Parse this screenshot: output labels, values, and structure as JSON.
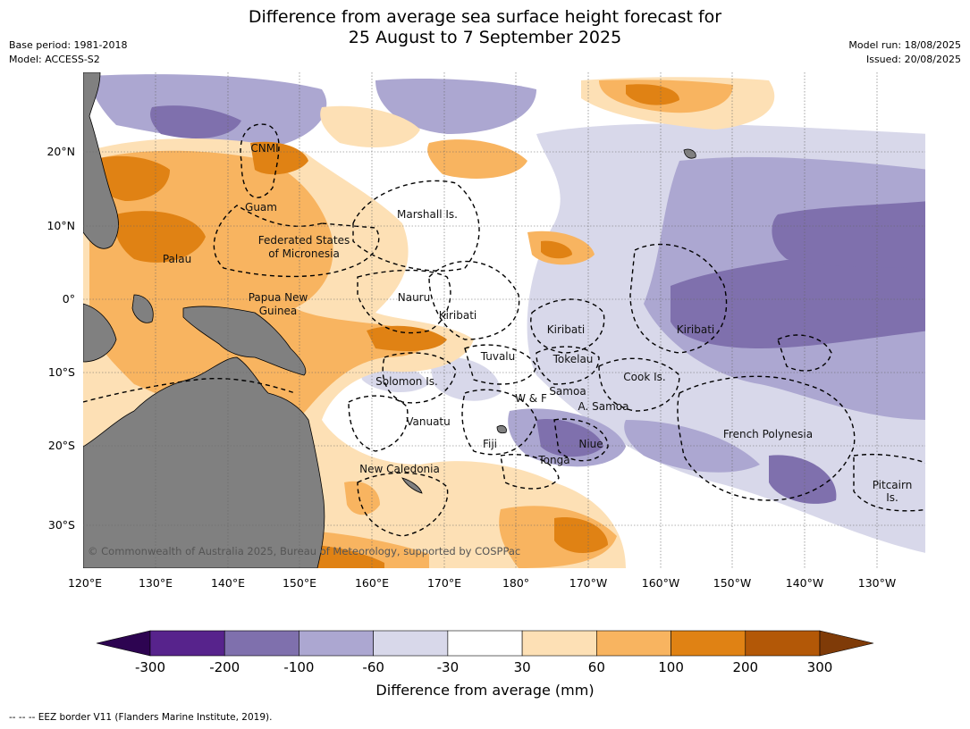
{
  "title": {
    "line1": "Difference from average sea surface height forecast for",
    "line2": "25 August to 7 September 2025"
  },
  "meta": {
    "base_period": "Base period: 1981-2018",
    "model": "Model: ACCESS-S2",
    "model_run": "Model run: 18/08/2025",
    "issued": "Issued: 20/08/2025"
  },
  "copyright": "© Commonwealth of Australia 2025, Bureau of Meteorology, supported by COSPPac",
  "axes": {
    "lon_ticks": [
      "120°E",
      "130°E",
      "140°E",
      "150°E",
      "160°E",
      "170°E",
      "180°",
      "170°W",
      "160°W",
      "150°W",
      "140°W",
      "130°W"
    ],
    "lat_ticks": [
      "20°N",
      "10°N",
      "0°",
      "10°S",
      "20°S",
      "30°S"
    ]
  },
  "regions": [
    "CNMI",
    "Guam",
    "Marshall Is.",
    "Federated States",
    "of Micronesia",
    "Palau",
    "Papua New",
    "Guinea",
    "Nauru",
    "Kiribati",
    "Kiribati",
    "Kiribati",
    "Tuvalu",
    "Tokelau",
    "Solomon Is.",
    "W & F",
    "Samoa",
    "A. Samoa",
    "Cook Is.",
    "Vanuatu",
    "Fiji",
    "Niue",
    "Tonga",
    "New Caledonia",
    "French Polynesia",
    "Pitcairn",
    "Is."
  ],
  "colorbar": {
    "ticks": [
      "-300",
      "-200",
      "-100",
      "-60",
      "-30",
      "30",
      "60",
      "100",
      "200",
      "300"
    ],
    "colors": [
      "#57238c",
      "#7f70ad",
      "#aca7d1",
      "#d8d8ea",
      "#ffffff",
      "#fde0b5",
      "#f8b460",
      "#e08214",
      "#b35807"
    ],
    "under_color": "#2d0451",
    "over_color": "#7f3b08",
    "label": "Difference from average (mm)"
  },
  "legend_note": "--  --  -- EEZ border V11 (Flanders Marine Institute, 2019).",
  "colors": {
    "land": "#808080",
    "ocean_neutral": "#ffffff"
  }
}
